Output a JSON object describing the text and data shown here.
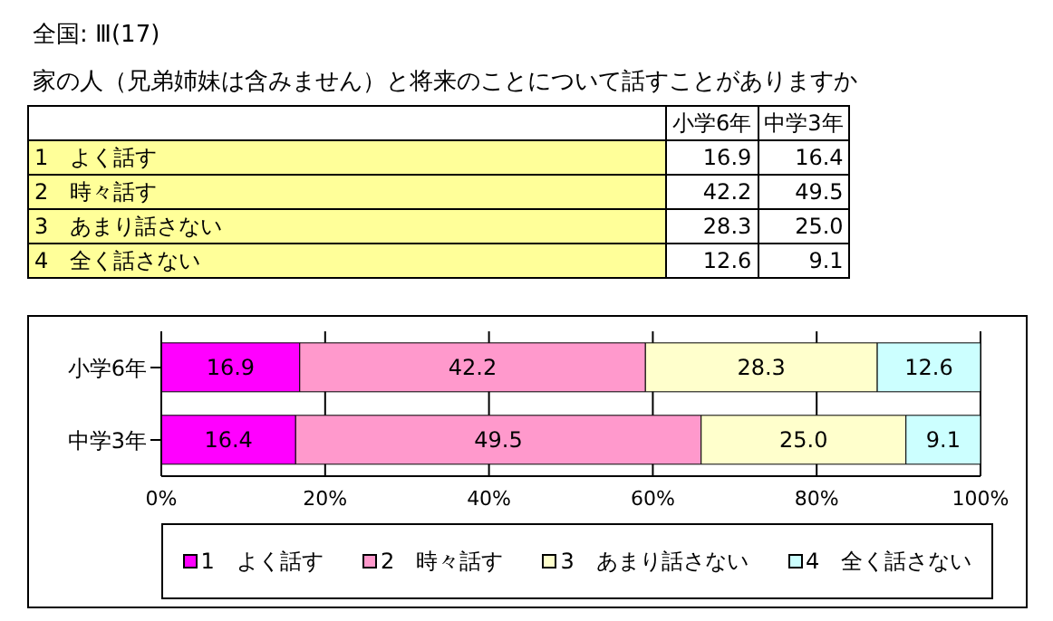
{
  "chart_data": {
    "type": "bar",
    "orientation": "horizontal",
    "stacked": true,
    "title": "全国: Ⅲ(17)",
    "subtitle": "家の人（兄弟姉妹は含みません）と将来のことについて話すことがありますか",
    "categories": [
      "小学6年",
      "中学3年"
    ],
    "series": [
      {
        "name": "1　よく話す",
        "color": "#ff00ff",
        "values": [
          16.9,
          16.4
        ],
        "value_labels": [
          "16.9",
          "16.4"
        ]
      },
      {
        "name": "2　時々話す",
        "color": "#ff99cc",
        "values": [
          42.2,
          49.5
        ],
        "value_labels": [
          "42.2",
          "49.5"
        ]
      },
      {
        "name": "3　あまり話さない",
        "color": "#ffffcc",
        "values": [
          28.3,
          25.0
        ],
        "value_labels": [
          "28.3",
          "25.0"
        ]
      },
      {
        "name": "4　全く話さない",
        "color": "#ccffff",
        "values": [
          12.6,
          9.1
        ],
        "value_labels": [
          "12.6",
          "9.1"
        ]
      }
    ],
    "xlim": [
      0,
      100
    ],
    "xticks": [
      {
        "value": 0,
        "label": "0%"
      },
      {
        "value": 20,
        "label": "20%"
      },
      {
        "value": 40,
        "label": "40%"
      },
      {
        "value": 60,
        "label": "60%"
      },
      {
        "value": 80,
        "label": "80%"
      },
      {
        "value": 100,
        "label": "100%"
      }
    ],
    "grid": "x",
    "legend": "bottom"
  }
}
